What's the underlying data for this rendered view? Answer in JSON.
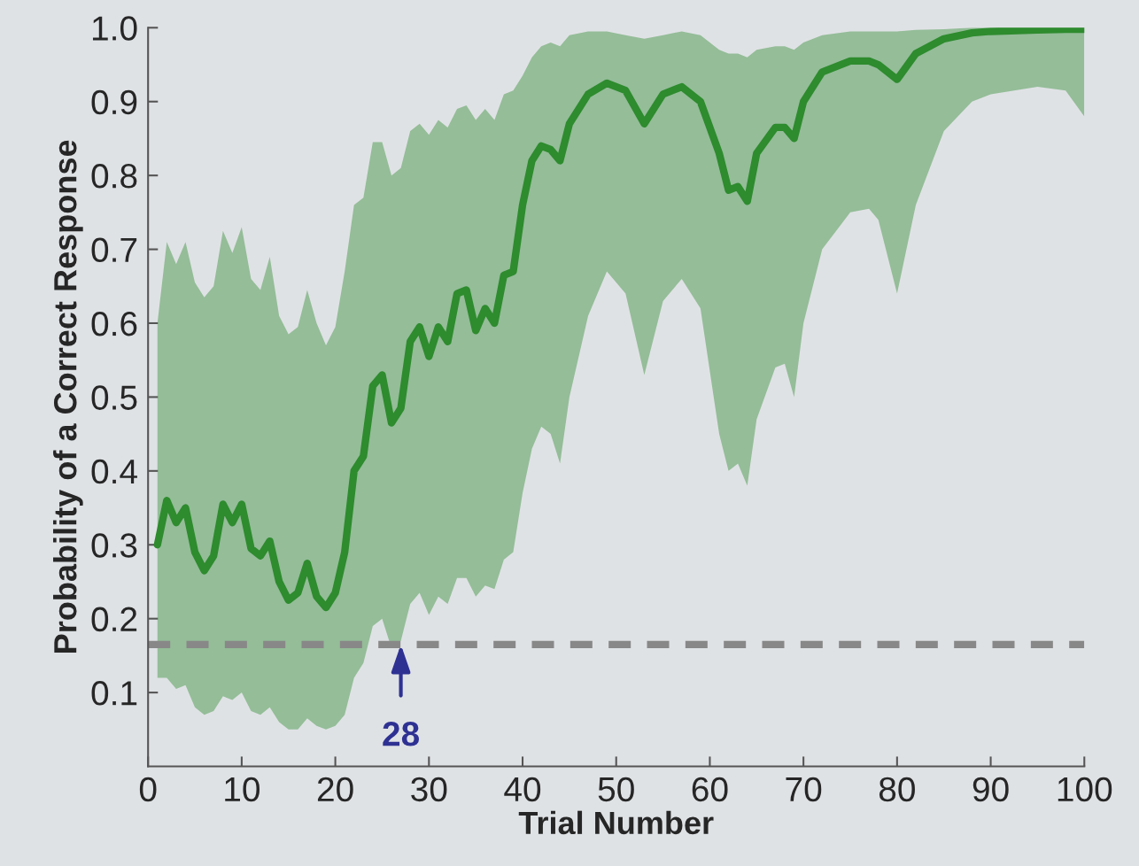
{
  "chart_data": {
    "type": "line",
    "xlabel": "Trial Number",
    "ylabel": "Probability of a Correct Response",
    "xlim": [
      0,
      100
    ],
    "xticks": [
      0,
      10,
      20,
      30,
      40,
      50,
      60,
      70,
      80,
      90,
      100
    ],
    "ylim": [
      0,
      1.0
    ],
    "yticks": [
      0.1,
      0.2,
      0.3,
      0.4,
      0.5,
      0.6,
      0.7,
      0.8,
      0.9,
      {
        "value": 1.0,
        "label": "1.0"
      }
    ],
    "grid": false,
    "legend": false,
    "marker": "none",
    "line_style": "solid",
    "series": [
      {
        "color": "#2e8b2e",
        "x": [
          1,
          2,
          3,
          4,
          5,
          6,
          7,
          8,
          9,
          10,
          11,
          12,
          13,
          14,
          15,
          16,
          17,
          18,
          19,
          20,
          21,
          22,
          23,
          24,
          25,
          26,
          27,
          28,
          29,
          30,
          31,
          32,
          33,
          34,
          35,
          36,
          37,
          38,
          39,
          40,
          41,
          42,
          43,
          44,
          45,
          47,
          49,
          51,
          53,
          55,
          57,
          59,
          61,
          62,
          63,
          64,
          65,
          67,
          68,
          69,
          70,
          72,
          75,
          77,
          78,
          80,
          82,
          85,
          88,
          90,
          95,
          98,
          100
        ],
        "values": [
          0.3,
          0.36,
          0.33,
          0.35,
          0.29,
          0.265,
          0.285,
          0.355,
          0.33,
          0.355,
          0.295,
          0.285,
          0.305,
          0.25,
          0.225,
          0.235,
          0.275,
          0.23,
          0.215,
          0.235,
          0.29,
          0.4,
          0.42,
          0.515,
          0.53,
          0.465,
          0.485,
          0.575,
          0.595,
          0.555,
          0.595,
          0.575,
          0.64,
          0.645,
          0.59,
          0.62,
          0.6,
          0.665,
          0.67,
          0.76,
          0.82,
          0.84,
          0.835,
          0.82,
          0.87,
          0.91,
          0.925,
          0.915,
          0.87,
          0.91,
          0.92,
          0.9,
          0.83,
          0.78,
          0.785,
          0.765,
          0.83,
          0.865,
          0.865,
          0.85,
          0.9,
          0.94,
          0.955,
          0.955,
          0.95,
          0.93,
          0.965,
          0.985,
          0.993,
          0.995,
          0.997,
          0.998,
          0.998
        ],
        "lower": [
          0.12,
          0.12,
          0.105,
          0.11,
          0.08,
          0.07,
          0.075,
          0.095,
          0.09,
          0.1,
          0.075,
          0.07,
          0.08,
          0.06,
          0.05,
          0.05,
          0.065,
          0.055,
          0.05,
          0.055,
          0.07,
          0.12,
          0.14,
          0.19,
          0.2,
          0.16,
          0.17,
          0.22,
          0.235,
          0.205,
          0.23,
          0.22,
          0.255,
          0.255,
          0.23,
          0.245,
          0.24,
          0.28,
          0.29,
          0.37,
          0.43,
          0.46,
          0.45,
          0.41,
          0.5,
          0.61,
          0.67,
          0.64,
          0.53,
          0.63,
          0.66,
          0.62,
          0.45,
          0.4,
          0.41,
          0.38,
          0.47,
          0.54,
          0.545,
          0.5,
          0.6,
          0.7,
          0.75,
          0.755,
          0.74,
          0.64,
          0.76,
          0.86,
          0.9,
          0.91,
          0.92,
          0.915,
          0.88
        ],
        "upper": [
          0.6,
          0.71,
          0.68,
          0.71,
          0.655,
          0.635,
          0.65,
          0.725,
          0.695,
          0.73,
          0.66,
          0.645,
          0.69,
          0.61,
          0.585,
          0.595,
          0.645,
          0.6,
          0.57,
          0.595,
          0.67,
          0.76,
          0.77,
          0.845,
          0.845,
          0.8,
          0.81,
          0.86,
          0.87,
          0.855,
          0.875,
          0.865,
          0.89,
          0.895,
          0.875,
          0.89,
          0.875,
          0.91,
          0.915,
          0.935,
          0.96,
          0.975,
          0.98,
          0.975,
          0.99,
          0.995,
          0.995,
          0.99,
          0.985,
          0.99,
          0.995,
          0.99,
          0.97,
          0.965,
          0.965,
          0.96,
          0.97,
          0.975,
          0.975,
          0.97,
          0.98,
          0.99,
          0.995,
          0.995,
          0.995,
          0.995,
          0.997,
          0.998,
          1.0,
          1.0,
          1.0,
          1.0,
          1.0
        ]
      }
    ],
    "ref_lines": [
      {
        "axis": "y",
        "value": 0.165,
        "color": "#888888",
        "line_style": "dashed"
      }
    ],
    "annotations": [
      {
        "text": "28",
        "x": 27,
        "y": 0.165
      }
    ]
  }
}
